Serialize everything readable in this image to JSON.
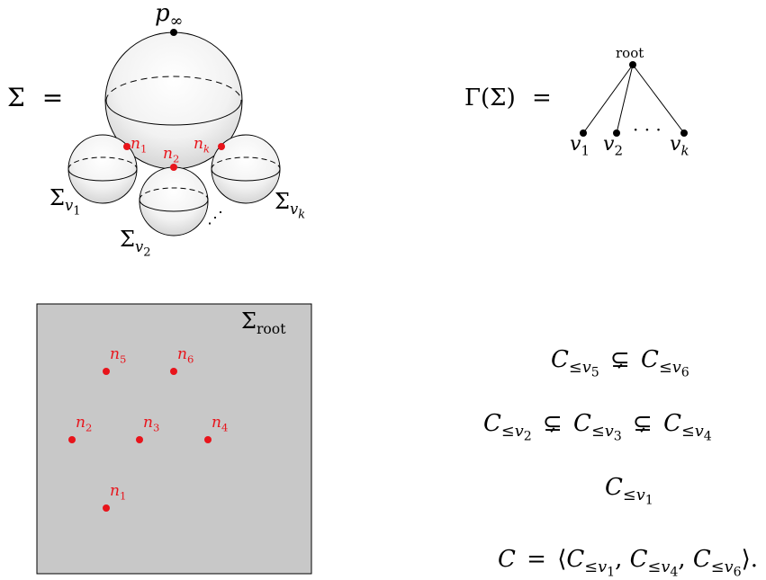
{
  "top_diagram": {
    "sigma_symbol": "Σ",
    "equals": "=",
    "p_label": "p",
    "p_sub": "∞",
    "node_labels": {
      "n1": {
        "base": "n",
        "sub": "1"
      },
      "n2": {
        "base": "n",
        "sub": "2"
      },
      "nk": {
        "base": "n",
        "sub": "k"
      }
    },
    "subsurfaces": {
      "v1": {
        "base": "Σ",
        "sub": "v",
        "subsub": "1"
      },
      "v2": {
        "base": "Σ",
        "sub": "v",
        "subsub": "2"
      },
      "vk": {
        "base": "Σ",
        "sub": "v",
        "subsub": "k"
      }
    },
    "ellipsis": "⋰"
  },
  "tree": {
    "lhs": "Γ(Σ)",
    "equals": "=",
    "root_label": "root",
    "leaves": [
      {
        "base": "v",
        "sub": "1"
      },
      {
        "base": "v",
        "sub": "2"
      },
      {
        "base": "v",
        "sub": "k"
      }
    ],
    "ellipsis": "· · ·"
  },
  "box": {
    "label_base": "Σ",
    "label_sub": "root",
    "fill_color": "#c8c8c8",
    "points": [
      {
        "base": "n",
        "sub": "5"
      },
      {
        "base": "n",
        "sub": "6"
      },
      {
        "base": "n",
        "sub": "2"
      },
      {
        "base": "n",
        "sub": "3"
      },
      {
        "base": "n",
        "sub": "4"
      },
      {
        "base": "n",
        "sub": "1"
      }
    ]
  },
  "relations": {
    "line1": {
      "a": "5",
      "b": "6"
    },
    "line2": {
      "a": "2",
      "b": "3",
      "c": "4"
    },
    "line3": {
      "a": "1"
    },
    "line4": {
      "a": "1",
      "b": "4",
      "c": "6"
    },
    "C": "C",
    "leq": "≤",
    "v": "v",
    "subsetneq": "⊊"
  },
  "colors": {
    "accent_red": "#e8141b",
    "box_gray": "#c8c8c8"
  }
}
